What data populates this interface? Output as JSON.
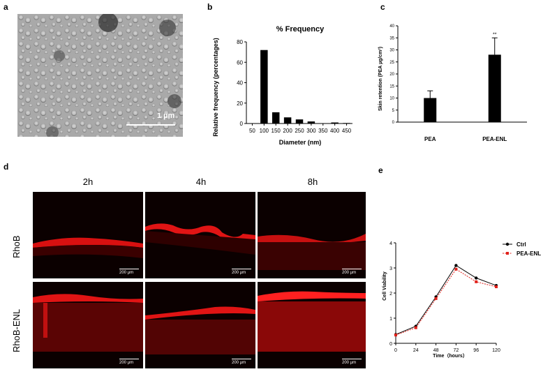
{
  "panels": {
    "a": {
      "letter": "a",
      "scale_label": "1 µm"
    },
    "b": {
      "letter": "b"
    },
    "c": {
      "letter": "c"
    },
    "d": {
      "letter": "d",
      "columns": [
        "2h",
        "4h",
        "8h"
      ],
      "rows": [
        "RhoB",
        "RhoB-ENL"
      ],
      "scale_label": "200 µm"
    },
    "e": {
      "letter": "e"
    }
  },
  "chart_data": [
    {
      "id": "b",
      "type": "bar",
      "title": "% Frequency",
      "xlabel": "Diameter (nm)",
      "ylabel": "Relative frequency (percentages)",
      "categories": [
        "50",
        "100",
        "150",
        "200",
        "250",
        "300",
        "350",
        "400",
        "450"
      ],
      "values": [
        0,
        72,
        11,
        6,
        4,
        2,
        0,
        1,
        0.5
      ],
      "ylim": [
        0,
        80
      ],
      "yticks": [
        "0",
        "20",
        "40",
        "60",
        "80"
      ],
      "color": "#000000"
    },
    {
      "id": "c",
      "type": "bar",
      "xlabel": "",
      "ylabel": "Skin retention (PEA µg/cm²)",
      "categories": [
        "PEA",
        "PEA-ENL"
      ],
      "values": [
        10,
        28
      ],
      "errors": [
        3,
        7
      ],
      "significance": [
        "",
        "**"
      ],
      "ylim": [
        0,
        40
      ],
      "yticks": [
        "0",
        "5",
        "10",
        "15",
        "20",
        "25",
        "30",
        "35",
        "40"
      ],
      "color": "#000000"
    },
    {
      "id": "e",
      "type": "line",
      "xlabel": "Time（hours）",
      "ylabel": "Cell Viability",
      "x": [
        0,
        24,
        48,
        72,
        96,
        120
      ],
      "xticks": [
        "0",
        "24",
        "48",
        "72",
        "96",
        "120"
      ],
      "ylim": [
        0,
        4
      ],
      "yticks": [
        "0",
        "1",
        "2",
        "3",
        "4"
      ],
      "legend_position": "top-right",
      "series": [
        {
          "name": "Ctrl",
          "values": [
            0.35,
            0.68,
            1.85,
            3.1,
            2.6,
            2.3
          ],
          "color": "#000000"
        },
        {
          "name": "PEA-ENL",
          "values": [
            0.33,
            0.62,
            1.78,
            2.95,
            2.45,
            2.25
          ],
          "color": "#e0201a"
        }
      ]
    }
  ]
}
